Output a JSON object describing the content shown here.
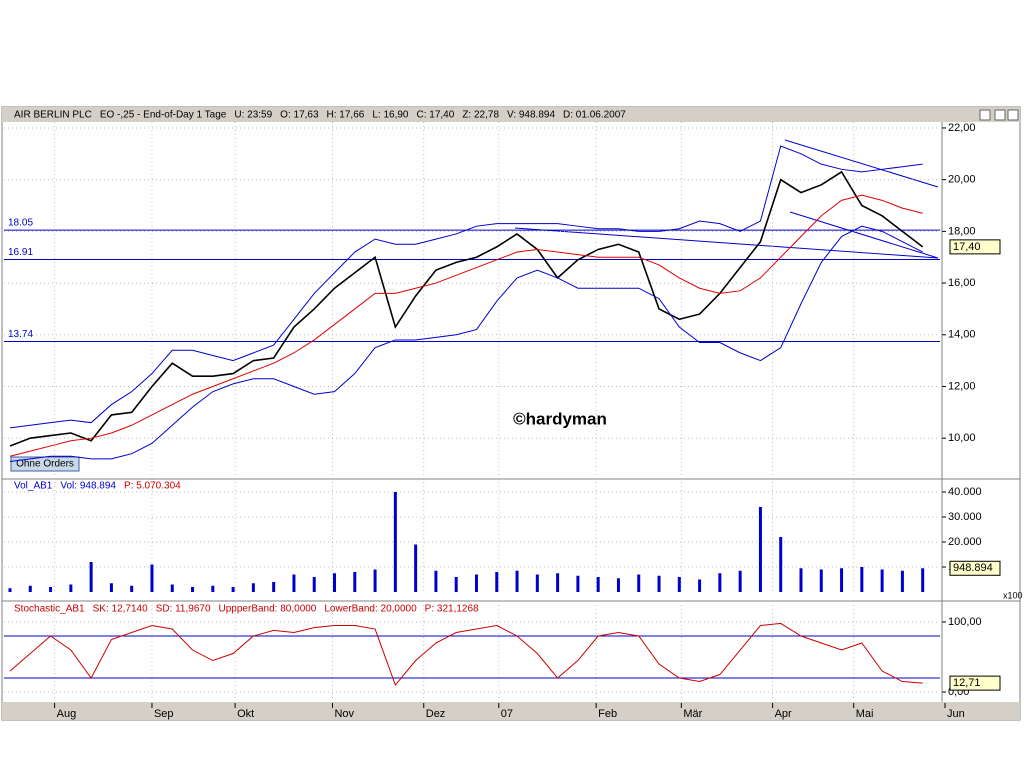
{
  "chart_data": [
    {
      "type": "line",
      "header": [
        "AIR BERLIN PLC",
        "EO -,25 - End-of-Day 1 Tage",
        "U: 23:59",
        "O: 17,63",
        "H: 17,66",
        "L: 16,90",
        "C: 17,40",
        "Z: 22,78",
        "V: 948.894",
        "D: 01.06.2007"
      ],
      "watermark": "©hardyman",
      "button": "Ohne Orders",
      "last_label": "17,40",
      "xlim": [
        0,
        46.1
      ],
      "ylim": [
        8.46,
        22.23
      ],
      "yticks": [
        {
          "value": 10,
          "label": "10,00"
        },
        {
          "value": 12,
          "label": "12,00"
        },
        {
          "value": 14,
          "label": "14,00"
        },
        {
          "value": 16,
          "label": "16,00"
        },
        {
          "value": 18,
          "label": "18,00"
        },
        {
          "value": 20,
          "label": "20,00"
        },
        {
          "value": 22,
          "label": "22,00"
        }
      ],
      "levels": [
        18.05,
        16.91,
        13.74
      ],
      "grid": true,
      "series": [
        {
          "name": "Close",
          "color": "#000000",
          "values": [
            9.7,
            10.0,
            10.1,
            10.2,
            9.9,
            10.9,
            11.0,
            12.0,
            12.9,
            12.4,
            12.4,
            12.5,
            13.0,
            13.1,
            14.3,
            15.0,
            15.8,
            16.4,
            17.0,
            14.3,
            15.5,
            16.5,
            16.8,
            17.0,
            17.4,
            17.9,
            17.3,
            16.2,
            16.9,
            17.3,
            17.5,
            17.2,
            15.0,
            14.6,
            14.8,
            15.6,
            16.6,
            17.6,
            20.0,
            19.5,
            19.8,
            20.3,
            19.0,
            18.6,
            18.0,
            17.4
          ]
        },
        {
          "name": "MA",
          "color": "#e00000",
          "values": [
            9.3,
            9.5,
            9.7,
            9.9,
            10.0,
            10.2,
            10.5,
            10.9,
            11.3,
            11.7,
            12.0,
            12.3,
            12.6,
            12.9,
            13.3,
            13.8,
            14.4,
            15.0,
            15.6,
            15.6,
            15.8,
            16.0,
            16.3,
            16.6,
            16.9,
            17.2,
            17.3,
            17.2,
            17.1,
            17.0,
            17.0,
            17.0,
            16.7,
            16.2,
            15.8,
            15.6,
            15.7,
            16.2,
            17.0,
            17.8,
            18.6,
            19.2,
            19.4,
            19.2,
            18.9,
            18.7
          ]
        },
        {
          "name": "Upper",
          "color": "#0000cc",
          "values": [
            10.4,
            10.5,
            10.6,
            10.7,
            10.6,
            11.3,
            11.8,
            12.5,
            13.4,
            13.4,
            13.2,
            13.0,
            13.3,
            13.6,
            14.6,
            15.6,
            16.4,
            17.2,
            17.7,
            17.5,
            17.5,
            17.7,
            17.9,
            18.2,
            18.3,
            18.3,
            18.3,
            18.3,
            18.2,
            18.1,
            18.1,
            18.0,
            18.0,
            18.1,
            18.4,
            18.3,
            18.0,
            18.4,
            21.3,
            21.0,
            20.6,
            20.4,
            20.3,
            20.4,
            20.5,
            20.6
          ]
        },
        {
          "name": "Lower",
          "color": "#0000cc",
          "values": [
            9.1,
            9.2,
            9.3,
            9.3,
            9.2,
            9.2,
            9.4,
            9.8,
            10.5,
            11.2,
            11.8,
            12.1,
            12.3,
            12.3,
            12.0,
            11.7,
            11.8,
            12.5,
            13.5,
            13.8,
            13.8,
            13.9,
            14.0,
            14.2,
            15.3,
            16.2,
            16.5,
            16.2,
            15.8,
            15.8,
            15.8,
            15.8,
            15.4,
            14.3,
            13.7,
            13.7,
            13.3,
            13.0,
            13.5,
            15.2,
            16.8,
            17.8,
            18.2,
            18.0,
            17.6,
            17.2
          ]
        }
      ]
    },
    {
      "type": "bar",
      "header": [
        "Vol_AB1",
        "Vol: 948.894",
        "P: 5.070.304"
      ],
      "last_label": "948.894",
      "unit_label": "x100",
      "xlim": [
        0,
        46.1
      ],
      "ylim": [
        0,
        44000
      ],
      "yticks": [
        {
          "value": 10000,
          "label": "10.000"
        },
        {
          "value": 20000,
          "label": "20.000"
        },
        {
          "value": 30000,
          "label": "30.000"
        },
        {
          "value": 40000,
          "label": "40.000"
        }
      ],
      "grid": true,
      "series": [
        {
          "name": "Volume",
          "color": "#0000cc",
          "values": [
            1500,
            2500,
            2000,
            3000,
            12000,
            3500,
            2500,
            11000,
            3000,
            2000,
            2500,
            2000,
            3500,
            4000,
            7000,
            6000,
            7500,
            8000,
            9000,
            40000,
            19000,
            8500,
            6000,
            7000,
            8000,
            8500,
            7000,
            7500,
            6500,
            6000,
            5500,
            7000,
            6500,
            6000,
            5000,
            7500,
            8500,
            34000,
            22000,
            9500,
            9000,
            9500,
            10000,
            9000,
            8500,
            9488.94
          ]
        }
      ]
    },
    {
      "type": "line",
      "header": [
        "Stochastic_AB1",
        "SK: 12,7140",
        "SD: 11,9670",
        "UppperBand: 80,0000",
        "LowerBand: 20,0000",
        "P: 321,1268"
      ],
      "last_label": "12,71",
      "xlim": [
        0,
        46.1
      ],
      "ylim": [
        -11.4,
        124.3
      ],
      "yticks": [
        {
          "value": 0,
          "label": "0,00"
        },
        {
          "value": 100,
          "label": "100,00"
        }
      ],
      "levels": [
        80,
        20
      ],
      "grid": true,
      "xticks": [
        {
          "value": 2.2,
          "label": "Aug"
        },
        {
          "value": 7.0,
          "label": "Sep"
        },
        {
          "value": 11.1,
          "label": "Okt"
        },
        {
          "value": 15.9,
          "label": "Nov"
        },
        {
          "value": 20.4,
          "label": "Dez"
        },
        {
          "value": 24.1,
          "label": "07"
        },
        {
          "value": 28.9,
          "label": "Feb"
        },
        {
          "value": 33.1,
          "label": "Mär"
        },
        {
          "value": 37.6,
          "label": "Apr"
        },
        {
          "value": 41.6,
          "label": "Mai"
        },
        {
          "value": 46.1,
          "label": "Jun"
        }
      ],
      "series": [
        {
          "name": "SK",
          "color": "#cc0000",
          "values": [
            30,
            55,
            80,
            60,
            20,
            75,
            85,
            95,
            90,
            60,
            45,
            55,
            80,
            88,
            85,
            92,
            95,
            95,
            90,
            10,
            45,
            70,
            85,
            90,
            95,
            80,
            55,
            20,
            45,
            80,
            85,
            80,
            40,
            20,
            15,
            25,
            60,
            95,
            98,
            80,
            70,
            60,
            70,
            30,
            15,
            12.714
          ]
        }
      ]
    }
  ]
}
